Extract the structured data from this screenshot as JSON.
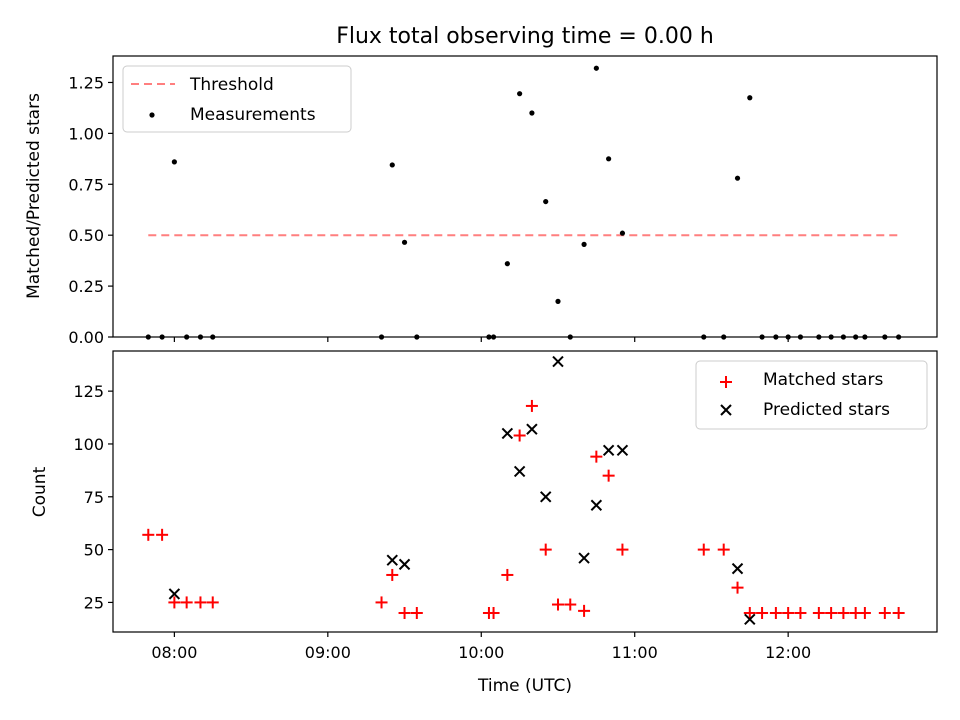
{
  "chart_data": [
    {
      "type": "scatter",
      "title": "Flux total observing time = 0.00 h",
      "xlabel": "",
      "ylabel": "Matched/Predicted stars",
      "xlim": [
        7.6,
        12.97
      ],
      "ylim": [
        0.0,
        1.38
      ],
      "yticks": [
        0.0,
        0.25,
        0.5,
        0.75,
        1.0,
        1.25
      ],
      "ytick_labels": [
        "0.00",
        "0.25",
        "0.50",
        "0.75",
        "1.00",
        "1.25"
      ],
      "xticks": [
        8,
        9,
        10,
        11,
        12
      ],
      "threshold": {
        "name": "Threshold",
        "value": 0.5,
        "x": [
          7.83,
          12.72
        ],
        "color": "#ff7f7f"
      },
      "legend": [
        "Threshold",
        "Measurements"
      ],
      "legend_location": "upper left",
      "series": [
        {
          "name": "Measurements",
          "color": "#000000",
          "points": [
            [
              7.83,
              0.0
            ],
            [
              7.92,
              0.0
            ],
            [
              8.0,
              0.86
            ],
            [
              8.08,
              0.0
            ],
            [
              8.17,
              0.0
            ],
            [
              8.25,
              0.0
            ],
            [
              9.35,
              0.0
            ],
            [
              9.42,
              0.845
            ],
            [
              9.5,
              0.465
            ],
            [
              9.58,
              0.0
            ],
            [
              10.05,
              0.0
            ],
            [
              10.08,
              0.0
            ],
            [
              10.17,
              0.36
            ],
            [
              10.25,
              1.195
            ],
            [
              10.33,
              1.1
            ],
            [
              10.42,
              0.665
            ],
            [
              10.5,
              0.175
            ],
            [
              10.58,
              0.0
            ],
            [
              10.67,
              0.455
            ],
            [
              10.75,
              1.32
            ],
            [
              10.83,
              0.875
            ],
            [
              10.92,
              0.51
            ],
            [
              11.45,
              0.0
            ],
            [
              11.58,
              0.0
            ],
            [
              11.67,
              0.78
            ],
            [
              11.75,
              1.175
            ],
            [
              11.83,
              0.0
            ],
            [
              11.92,
              0.0
            ],
            [
              12.0,
              0.0
            ],
            [
              12.08,
              0.0
            ],
            [
              12.2,
              0.0
            ],
            [
              12.28,
              0.0
            ],
            [
              12.36,
              0.0
            ],
            [
              12.44,
              0.0
            ],
            [
              12.5,
              0.0
            ],
            [
              12.63,
              0.0
            ],
            [
              12.72,
              0.0
            ]
          ]
        }
      ]
    },
    {
      "type": "scatter",
      "title": "",
      "xlabel": "Time (UTC)",
      "ylabel": "Count",
      "xlim": [
        7.6,
        12.97
      ],
      "ylim": [
        11,
        144
      ],
      "yticks": [
        25,
        50,
        75,
        100,
        125
      ],
      "ytick_labels": [
        "25",
        "50",
        "75",
        "100",
        "125"
      ],
      "xticks": [
        8,
        9,
        10,
        11,
        12
      ],
      "xtick_labels": [
        "08:00",
        "09:00",
        "10:00",
        "11:00",
        "12:00"
      ],
      "legend": [
        "Matched stars",
        "Predicted stars"
      ],
      "legend_location": "upper right",
      "series": [
        {
          "name": "Matched stars",
          "marker": "plus",
          "color": "#ff0000",
          "points": [
            [
              7.83,
              57
            ],
            [
              7.92,
              57
            ],
            [
              8.0,
              25
            ],
            [
              8.08,
              25
            ],
            [
              8.17,
              25
            ],
            [
              8.25,
              25
            ],
            [
              9.35,
              25
            ],
            [
              9.42,
              38
            ],
            [
              9.5,
              20
            ],
            [
              9.58,
              20
            ],
            [
              10.05,
              20
            ],
            [
              10.08,
              20
            ],
            [
              10.17,
              38
            ],
            [
              10.25,
              104
            ],
            [
              10.33,
              118
            ],
            [
              10.42,
              50
            ],
            [
              10.5,
              24
            ],
            [
              10.58,
              24
            ],
            [
              10.67,
              21
            ],
            [
              10.75,
              94
            ],
            [
              10.83,
              85
            ],
            [
              10.92,
              50
            ],
            [
              11.45,
              50
            ],
            [
              11.58,
              50
            ],
            [
              11.67,
              32
            ],
            [
              11.75,
              20
            ],
            [
              11.83,
              20
            ],
            [
              11.92,
              20
            ],
            [
              12.0,
              20
            ],
            [
              12.08,
              20
            ],
            [
              12.2,
              20
            ],
            [
              12.28,
              20
            ],
            [
              12.36,
              20
            ],
            [
              12.44,
              20
            ],
            [
              12.5,
              20
            ],
            [
              12.63,
              20
            ],
            [
              12.72,
              20
            ]
          ]
        },
        {
          "name": "Predicted stars",
          "marker": "x",
          "color": "#000000",
          "points": [
            [
              8.0,
              29
            ],
            [
              9.42,
              45
            ],
            [
              9.5,
              43
            ],
            [
              10.17,
              105
            ],
            [
              10.25,
              87
            ],
            [
              10.33,
              107
            ],
            [
              10.42,
              75
            ],
            [
              10.5,
              139
            ],
            [
              10.67,
              46
            ],
            [
              10.75,
              71
            ],
            [
              10.83,
              97
            ],
            [
              10.92,
              97
            ],
            [
              11.67,
              41
            ],
            [
              11.75,
              17
            ]
          ]
        }
      ]
    }
  ]
}
